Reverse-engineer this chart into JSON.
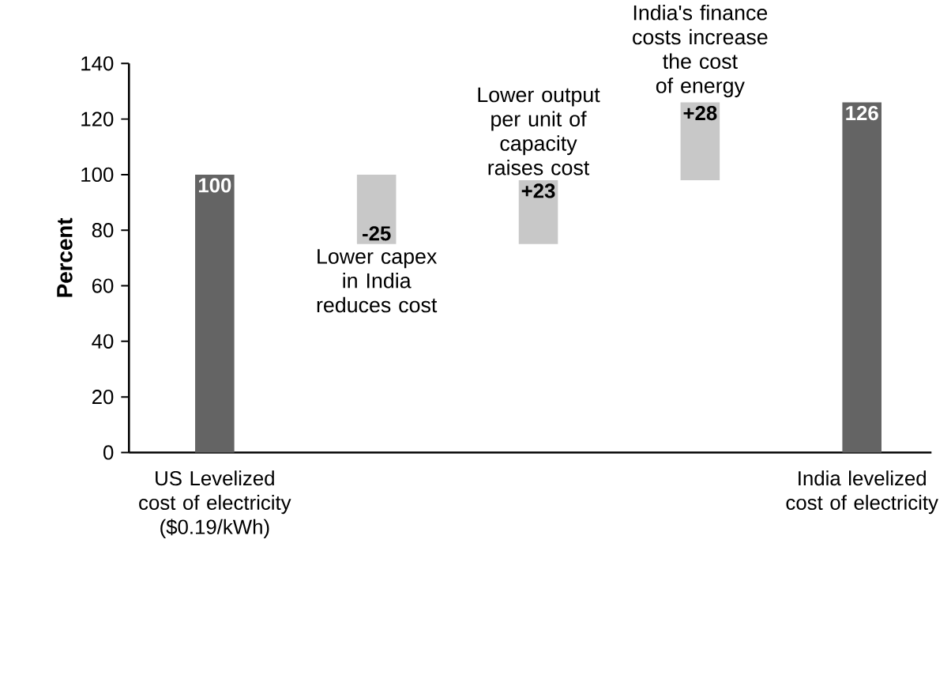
{
  "chart_data": {
    "type": "bar",
    "ylabel": "Percent",
    "categories": [
      "US Levelized cost of electricity ($0.19/kWh)",
      null,
      null,
      null,
      "India levelized cost of electricity"
    ],
    "values": [
      100,
      -25,
      23,
      28,
      126
    ],
    "base": [
      0,
      100,
      75,
      98,
      0
    ],
    "colors": [
      "#646464",
      "#c8c8c8",
      "#c8c8c8",
      "#c8c8c8",
      "#646464"
    ],
    "value_labels": [
      "100",
      "-25",
      "+23",
      "+28",
      "126"
    ],
    "annotations": [
      "Lower capex in India reduces cost",
      "Lower output per unit of capacity raises cost",
      "India's finance costs increase the cost of energy"
    ],
    "ylim": [
      0,
      140
    ],
    "yticks": [
      0,
      20,
      40,
      60,
      80,
      100,
      120,
      140
    ]
  }
}
